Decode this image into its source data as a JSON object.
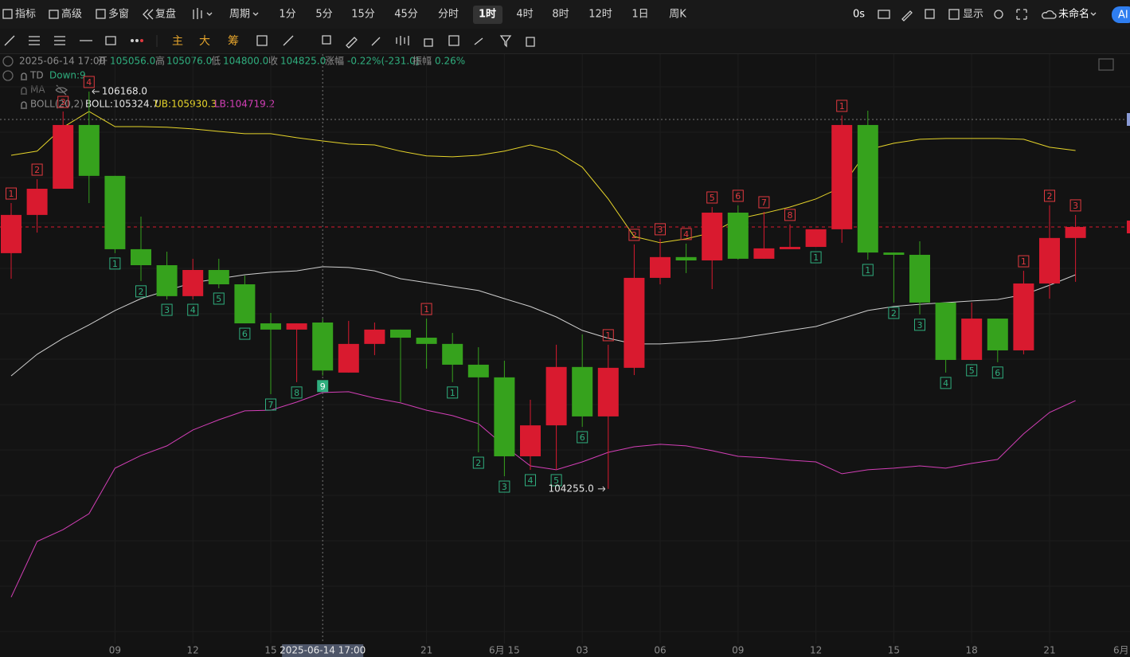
{
  "toolbar": {
    "left": [
      "指标",
      "高级",
      "多窗",
      "复盘",
      "周期"
    ],
    "periods": [
      "1分",
      "5分",
      "15分",
      "45分",
      "分时",
      "1时",
      "4时",
      "8时",
      "12时",
      "1日",
      "周K"
    ],
    "timer": "0s",
    "display": "显示",
    "layout_name": "未命名",
    "ai": "AI"
  },
  "drawing_toolbar": {
    "modes": [
      "主",
      "大",
      "筹"
    ]
  },
  "info": {
    "time": "2025-06-14 17:00",
    "open_label": "开",
    "open": "105056.0",
    "high_label": "高",
    "high": "105076.0",
    "low_label": "低",
    "low": "104800.0",
    "close_label": "收",
    "close": "104825.0",
    "change_label": "涨幅",
    "change": "-0.22%(-231.0)",
    "amplitude_label": "振幅",
    "amplitude": "0.26%"
  },
  "indicators": {
    "td": {
      "name": "TD",
      "status": "Down:9"
    },
    "ma": {
      "name": "MA"
    },
    "boll": {
      "name": "BOLL(20,2)",
      "mid": "BOLL:105324.7",
      "upper": "UB:105930.3",
      "lower": "LB:104719.2"
    }
  },
  "chart_data": {
    "type": "candlestick",
    "categories": [
      null,
      null,
      null,
      null,
      "09",
      null,
      null,
      "12",
      null,
      null,
      "15",
      null,
      null,
      null,
      null,
      null,
      "21",
      null,
      null,
      "6月 15",
      null,
      null,
      "03",
      null,
      null,
      "06",
      null,
      null,
      "09",
      null,
      null,
      "12",
      null,
      null,
      "15",
      null,
      null,
      "18",
      null,
      null,
      "21",
      null
    ],
    "x_edge_label": "6月",
    "crosshair_label": "2025-06-14 17:00",
    "open": [
      105390,
      105574,
      105700,
      106007,
      105762,
      105409,
      105332,
      105183,
      105309,
      105240,
      105052,
      105022,
      105056,
      104815,
      104953,
      105022,
      104983,
      104953,
      104853,
      104792,
      104412,
      104561,
      104842,
      104604,
      104838,
      105271,
      105371,
      105355,
      105585,
      105363,
      105409,
      105420,
      105505,
      106007,
      105393,
      105382,
      105152,
      104876,
      105075,
      104922,
      105244,
      105463
    ],
    "high": [
      105631,
      105746,
      106072,
      106168,
      105762,
      105566,
      105397,
      105363,
      105363,
      105282,
      105102,
      105052,
      105076,
      105064,
      105056,
      105022,
      105075,
      105006,
      104937,
      104872,
      104684,
      104949,
      104999,
      104949,
      105432,
      105459,
      105436,
      105612,
      105620,
      105589,
      105528,
      105505,
      106053,
      106076,
      105393,
      105447,
      105152,
      105152,
      105075,
      105305,
      105620,
      105574
    ],
    "low": [
      105267,
      105489,
      105700,
      105631,
      105390,
      105256,
      105167,
      105167,
      105221,
      105052,
      104711,
      104769,
      104800,
      104815,
      104899,
      104673,
      104834,
      104769,
      104431,
      104316,
      104347,
      104347,
      104554,
      104255,
      104803,
      105240,
      105294,
      105217,
      105359,
      105363,
      105409,
      105420,
      105440,
      105359,
      105152,
      105095,
      104815,
      104876,
      104865,
      104903,
      105171,
      105252
    ],
    "close": [
      105574,
      105700,
      106007,
      105762,
      105409,
      105332,
      105183,
      105309,
      105240,
      105052,
      105022,
      105052,
      104825,
      104953,
      105022,
      104983,
      104953,
      104853,
      104792,
      104412,
      104561,
      104842,
      104604,
      104838,
      105271,
      105371,
      105355,
      105585,
      105363,
      105413,
      105420,
      105505,
      106007,
      105393,
      105382,
      105152,
      104876,
      105075,
      104922,
      105244,
      105463,
      105516
    ],
    "up_color": "#d91a2f",
    "down_color": "#36a21d",
    "bands": {
      "upper": {
        "color": "#e6d42a",
        "values": [
          105861,
          105881,
          105996,
          106072,
          105999,
          105999,
          105996,
          105988,
          105976,
          105965,
          105965,
          105946,
          105930.3,
          105915,
          105911,
          105881,
          105858,
          105854,
          105861,
          105881,
          105911,
          105881,
          105804,
          105651,
          105470,
          105440,
          105459,
          105489,
          105555,
          105582,
          105612,
          105651,
          105708,
          105888,
          105919,
          105938,
          105942,
          105942,
          105942,
          105938,
          105900,
          105884
        ]
      },
      "mid": {
        "color": "#cfcfcf",
        "values": [
          104799,
          104903,
          104980,
          105045,
          105114,
          105171,
          105210,
          105248,
          105267,
          105286,
          105298,
          105305,
          105324.7,
          105321,
          105305,
          105267,
          105248,
          105229,
          105210,
          105171,
          105133,
          105083,
          105018,
          104980,
          104953,
          104953,
          104960,
          104968,
          104980,
          104999,
          105018,
          105037,
          105075,
          105114,
          105133,
          105144,
          105152,
          105160,
          105167,
          105190,
          105236,
          105286
        ]
      },
      "lower": {
        "color": "#d33fb7",
        "values": [
          103734,
          104002,
          104059,
          104136,
          104355,
          104416,
          104462,
          104539,
          104588,
          104631,
          104634,
          104673,
          104719.2,
          104723,
          104692,
          104669,
          104634,
          104608,
          104569,
          104462,
          104366,
          104347,
          104385,
          104431,
          104458,
          104470,
          104462,
          104439,
          104412,
          104405,
          104393,
          104385,
          104328,
          104347,
          104355,
          104366,
          104355,
          104378,
          104397,
          104520,
          104623,
          104680
        ]
      }
    },
    "td_sell": [
      1,
      2,
      3,
      4,
      null,
      null,
      null,
      null,
      null,
      null,
      null,
      null,
      null,
      null,
      null,
      null,
      1,
      null,
      null,
      null,
      null,
      null,
      null,
      1,
      2,
      3,
      4,
      5,
      6,
      7,
      8,
      null,
      1,
      null,
      null,
      null,
      null,
      null,
      null,
      1,
      2,
      3
    ],
    "td_buy": [
      null,
      null,
      null,
      null,
      1,
      2,
      3,
      4,
      5,
      6,
      7,
      8,
      9,
      null,
      null,
      null,
      null,
      1,
      2,
      3,
      4,
      5,
      6,
      null,
      null,
      null,
      null,
      null,
      null,
      null,
      null,
      1,
      null,
      1,
      2,
      3,
      4,
      5,
      6,
      null,
      null,
      null
    ],
    "td_sell_color": "#e0393f",
    "td_buy_color": "#2fae7e",
    "annotations": {
      "high_label": "106168.0",
      "low_label": "104255.0"
    },
    "ylim": [
      103511,
      106348
    ]
  }
}
